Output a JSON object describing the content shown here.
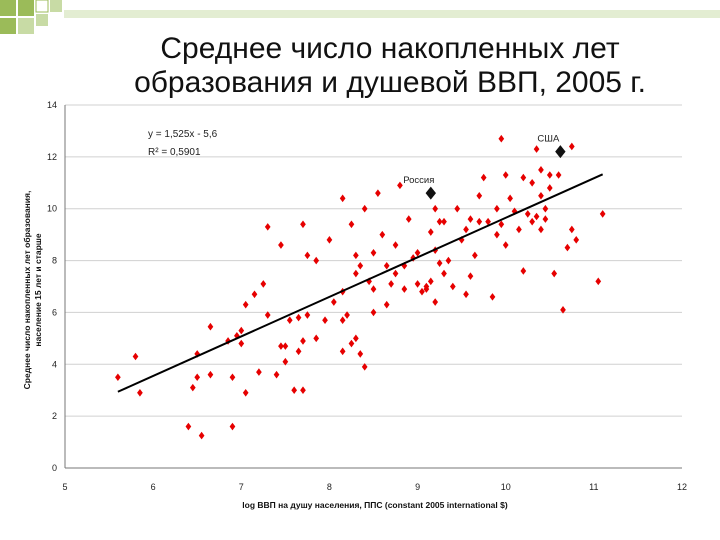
{
  "slide": {
    "title_line1": "Среднее число накопленных лет",
    "title_line2": "образования и душевой ВВП, 2005 г."
  },
  "colors": {
    "accent_green": "#9bbb59",
    "accent_light_green": "#c8dba5",
    "marker_red": "#e60000",
    "marker_black": "#111111"
  },
  "chart_data": {
    "type": "scatter",
    "title": "",
    "xlabel": "log  ВВП на душу населения, ППС (constant 2005 international $)",
    "ylabel_line1": "Среднее число накопленных лет образования,",
    "ylabel_line2": "население 15 лет и старше",
    "xlim": [
      5,
      12
    ],
    "ylim": [
      0,
      14
    ],
    "xticks": [
      5,
      6,
      7,
      8,
      9,
      10,
      11,
      12
    ],
    "yticks": [
      0,
      2,
      4,
      6,
      8,
      10,
      12,
      14
    ],
    "grid": "horizontal",
    "equation": "y = 1,525x - 5,6",
    "r2": "R² = 0,5901",
    "trendline": {
      "slope": 1.525,
      "intercept": -5.6,
      "x_range": [
        5.6,
        11.1
      ]
    },
    "highlighted": [
      {
        "label": "Россия",
        "x": 9.15,
        "y": 10.6
      },
      {
        "label": "США",
        "x": 10.62,
        "y": 12.2
      }
    ],
    "points": [
      [
        5.6,
        3.5
      ],
      [
        5.8,
        4.3
      ],
      [
        5.85,
        2.9
      ],
      [
        6.4,
        1.6
      ],
      [
        6.55,
        1.25
      ],
      [
        6.9,
        1.6
      ],
      [
        6.45,
        3.1
      ],
      [
        6.5,
        3.5
      ],
      [
        6.65,
        3.6
      ],
      [
        6.9,
        3.5
      ],
      [
        7.05,
        2.9
      ],
      [
        6.5,
        4.4
      ],
      [
        6.65,
        5.45
      ],
      [
        6.85,
        4.9
      ],
      [
        6.95,
        5.1
      ],
      [
        7.0,
        5.3
      ],
      [
        7.0,
        4.8
      ],
      [
        7.05,
        6.3
      ],
      [
        7.15,
        6.7
      ],
      [
        7.2,
        3.7
      ],
      [
        7.3,
        5.9
      ],
      [
        7.25,
        7.1
      ],
      [
        7.3,
        9.3
      ],
      [
        7.4,
        3.6
      ],
      [
        7.45,
        4.7
      ],
      [
        7.5,
        4.7
      ],
      [
        7.45,
        8.6
      ],
      [
        7.55,
        5.7
      ],
      [
        7.5,
        4.1
      ],
      [
        7.6,
        3.0
      ],
      [
        7.65,
        4.5
      ],
      [
        7.65,
        5.8
      ],
      [
        7.7,
        9.4
      ],
      [
        7.75,
        5.9
      ],
      [
        7.75,
        8.2
      ],
      [
        7.85,
        8.0
      ],
      [
        7.7,
        3.0
      ],
      [
        7.7,
        4.9
      ],
      [
        7.95,
        5.7
      ],
      [
        8.0,
        8.8
      ],
      [
        8.05,
        6.4
      ],
      [
        8.15,
        6.8
      ],
      [
        8.15,
        5.7
      ],
      [
        8.15,
        4.5
      ],
      [
        8.2,
        5.9
      ],
      [
        8.15,
        10.4
      ],
      [
        8.25,
        4.8
      ],
      [
        8.25,
        9.4
      ],
      [
        8.3,
        7.5
      ],
      [
        8.3,
        5.0
      ],
      [
        8.3,
        8.2
      ],
      [
        8.35,
        4.4
      ],
      [
        8.35,
        7.8
      ],
      [
        8.4,
        3.9
      ],
      [
        8.45,
        7.2
      ],
      [
        8.4,
        10.0
      ],
      [
        8.5,
        6.9
      ],
      [
        8.5,
        6.0
      ],
      [
        8.55,
        10.6
      ],
      [
        8.6,
        9.0
      ],
      [
        8.65,
        7.8
      ],
      [
        8.65,
        6.3
      ],
      [
        8.7,
        7.1
      ],
      [
        8.75,
        7.5
      ],
      [
        8.75,
        8.6
      ],
      [
        8.8,
        10.9
      ],
      [
        8.85,
        6.9
      ],
      [
        8.85,
        7.8
      ],
      [
        8.9,
        9.6
      ],
      [
        8.95,
        8.1
      ],
      [
        9.0,
        7.1
      ],
      [
        9.05,
        6.8
      ],
      [
        9.1,
        7.0
      ],
      [
        9.15,
        9.1
      ],
      [
        9.2,
        8.4
      ],
      [
        9.2,
        10.0
      ],
      [
        9.25,
        9.5
      ],
      [
        9.25,
        7.9
      ],
      [
        9.1,
        6.9
      ],
      [
        9.15,
        7.2
      ],
      [
        9.2,
        6.4
      ],
      [
        9.3,
        9.5
      ],
      [
        9.35,
        8.0
      ],
      [
        9.3,
        7.5
      ],
      [
        9.4,
        7.0
      ],
      [
        9.45,
        10.0
      ],
      [
        9.5,
        8.8
      ],
      [
        9.55,
        6.7
      ],
      [
        9.6,
        9.6
      ],
      [
        9.6,
        7.4
      ],
      [
        9.65,
        8.2
      ],
      [
        9.7,
        9.5
      ],
      [
        9.7,
        10.5
      ],
      [
        9.75,
        11.2
      ],
      [
        9.8,
        9.5
      ],
      [
        9.85,
        6.6
      ],
      [
        9.9,
        10.0
      ],
      [
        9.95,
        12.7
      ],
      [
        9.95,
        9.4
      ],
      [
        10.0,
        11.3
      ],
      [
        10.0,
        8.6
      ],
      [
        10.05,
        10.4
      ],
      [
        10.1,
        9.9
      ],
      [
        10.15,
        9.2
      ],
      [
        10.2,
        7.6
      ],
      [
        10.2,
        11.2
      ],
      [
        10.25,
        9.8
      ],
      [
        10.3,
        11.0
      ],
      [
        10.35,
        9.7
      ],
      [
        10.35,
        12.3
      ],
      [
        10.4,
        10.5
      ],
      [
        10.4,
        9.2
      ],
      [
        10.4,
        11.5
      ],
      [
        10.45,
        9.6
      ],
      [
        10.45,
        10.0
      ],
      [
        10.5,
        11.3
      ],
      [
        10.5,
        10.8
      ],
      [
        10.55,
        7.5
      ],
      [
        10.6,
        11.3
      ],
      [
        10.65,
        6.1
      ],
      [
        10.7,
        8.5
      ],
      [
        10.75,
        9.2
      ],
      [
        10.75,
        12.4
      ],
      [
        10.8,
        8.8
      ],
      [
        11.05,
        7.2
      ],
      [
        11.1,
        9.8
      ],
      [
        10.3,
        9.5
      ],
      [
        9.9,
        9.0
      ],
      [
        9.55,
        9.2
      ],
      [
        8.5,
        8.3
      ],
      [
        7.85,
        5.0
      ],
      [
        9.0,
        8.3
      ]
    ]
  }
}
